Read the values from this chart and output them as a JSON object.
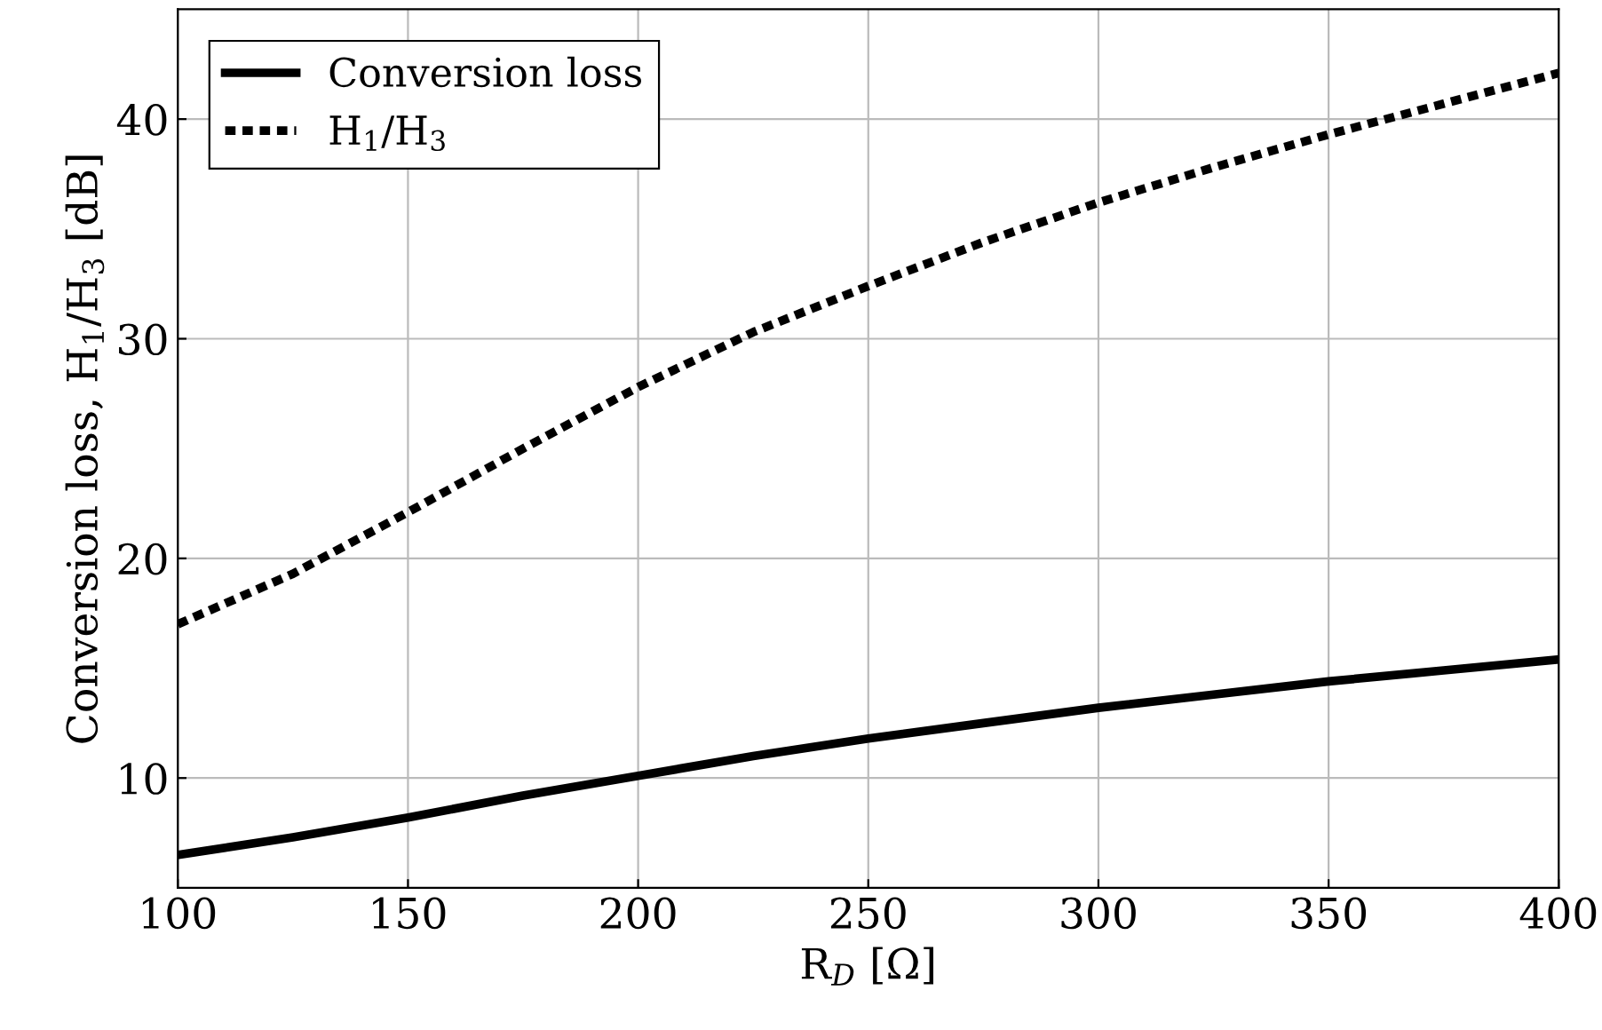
{
  "chart_data": {
    "type": "line",
    "xlabel": "R$_{D}$ [Ω]",
    "ylabel": "Conversion loss, H$_{1}$/H$_{3}$ [dB]",
    "x": [
      100,
      125,
      150,
      175,
      200,
      225,
      250,
      275,
      300,
      325,
      350,
      375,
      400
    ],
    "series": [
      {
        "name": "Conversion loss",
        "color": "#000000",
        "line_style": "solid",
        "values": [
          6.5,
          7.3,
          8.2,
          9.2,
          10.1,
          11.0,
          11.8,
          12.5,
          13.2,
          13.8,
          14.4,
          14.9,
          15.4
        ]
      },
      {
        "name": "H$_{1}$/H$_{3}$",
        "color": "#000000",
        "line_style": "dotted",
        "values": [
          17.0,
          19.3,
          22.1,
          25.0,
          27.8,
          30.3,
          32.4,
          34.4,
          36.2,
          37.8,
          39.3,
          40.7,
          42.1
        ]
      }
    ],
    "xlim": [
      100,
      400
    ],
    "xticks": [
      100,
      150,
      200,
      250,
      300,
      350,
      400
    ],
    "ylim": [
      5,
      45
    ],
    "yticks": [
      10,
      20,
      30,
      40
    ],
    "grid": true,
    "legend": "top left",
    "marker": "none"
  }
}
